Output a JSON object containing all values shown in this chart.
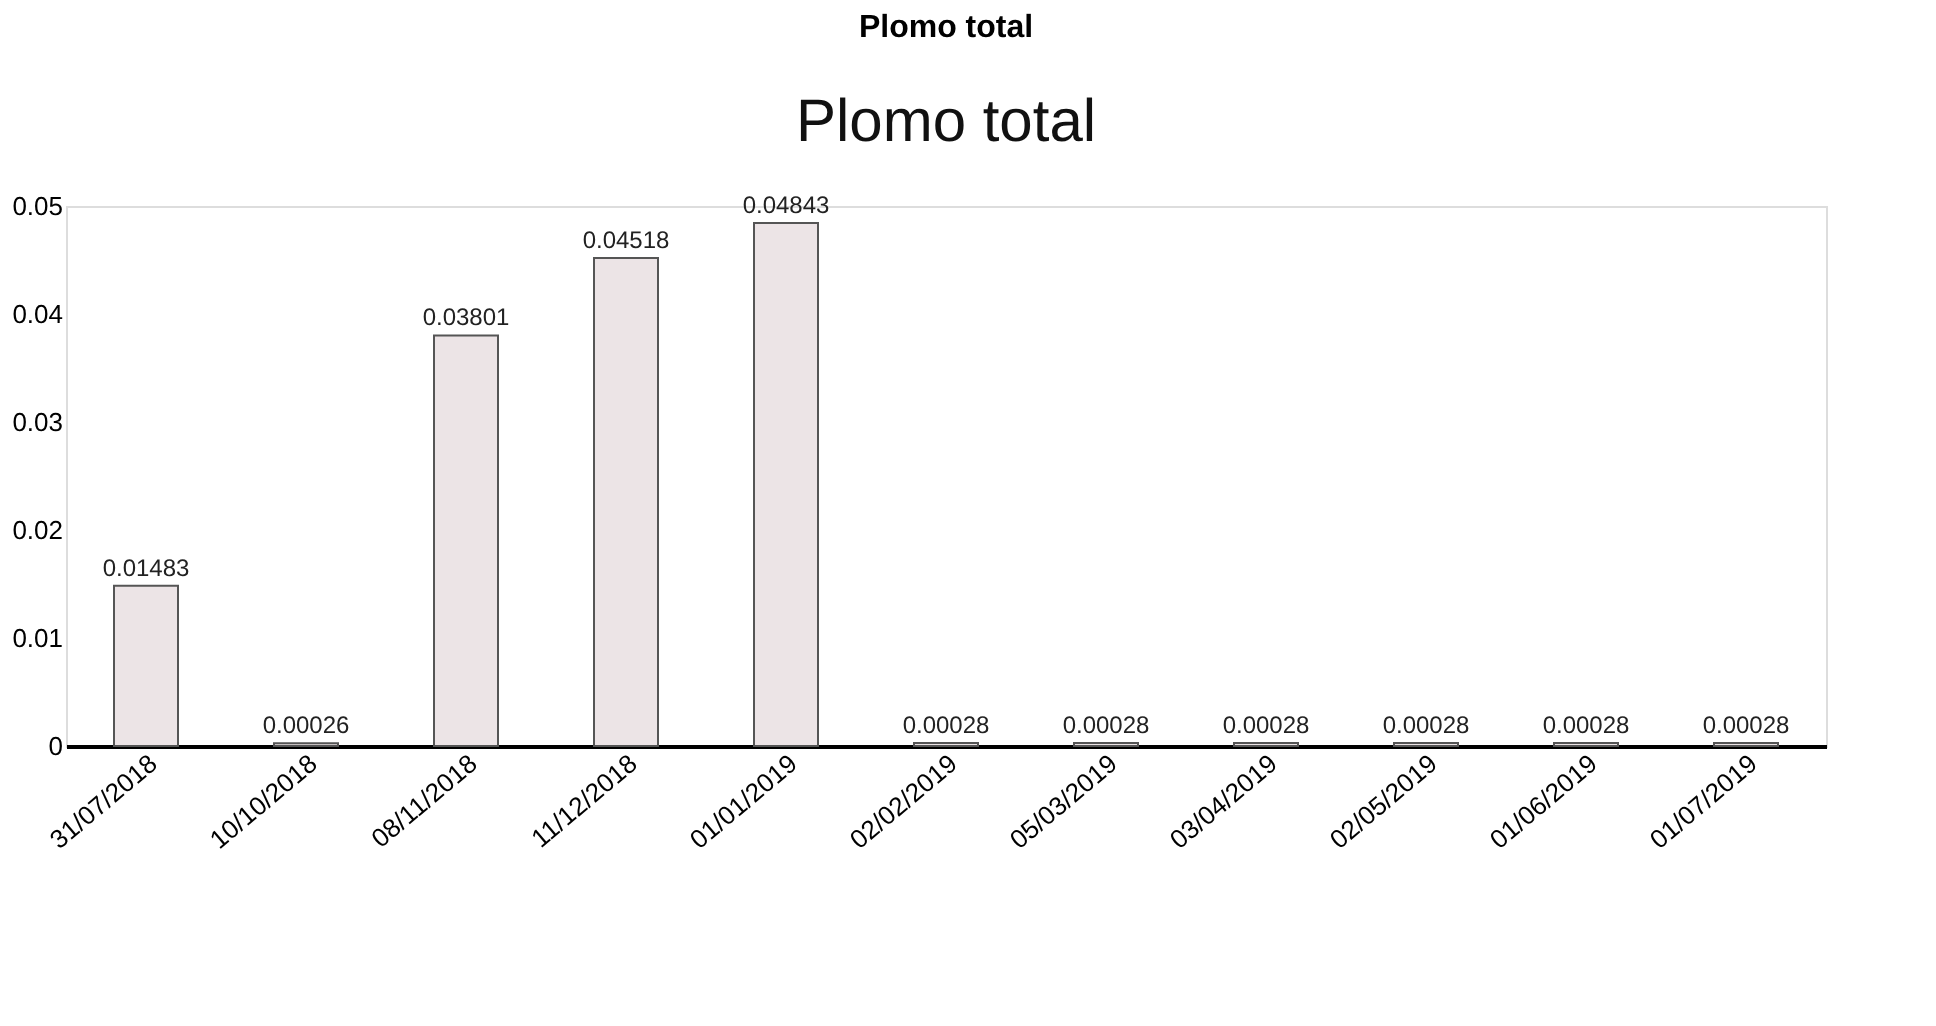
{
  "chart_data": {
    "type": "bar",
    "title": "Plomo total",
    "subtitle": "Plomo total",
    "categories": [
      "31/07/2018",
      "10/10/2018",
      "08/11/2018",
      "11/12/2018",
      "01/01/2019",
      "02/02/2019",
      "05/03/2019",
      "03/04/2019",
      "02/05/2019",
      "01/06/2019",
      "01/07/2019"
    ],
    "values": [
      0.01483,
      0.00026,
      0.03801,
      0.04518,
      0.04843,
      0.00028,
      0.00028,
      0.00028,
      0.00028,
      0.00028,
      0.00028
    ],
    "color": "#ece4e6",
    "ylim": [
      0,
      0.05
    ],
    "yticks": [
      0,
      0.01,
      0.02,
      0.03,
      0.04,
      0.05
    ],
    "data_labels": true,
    "grid": false
  }
}
